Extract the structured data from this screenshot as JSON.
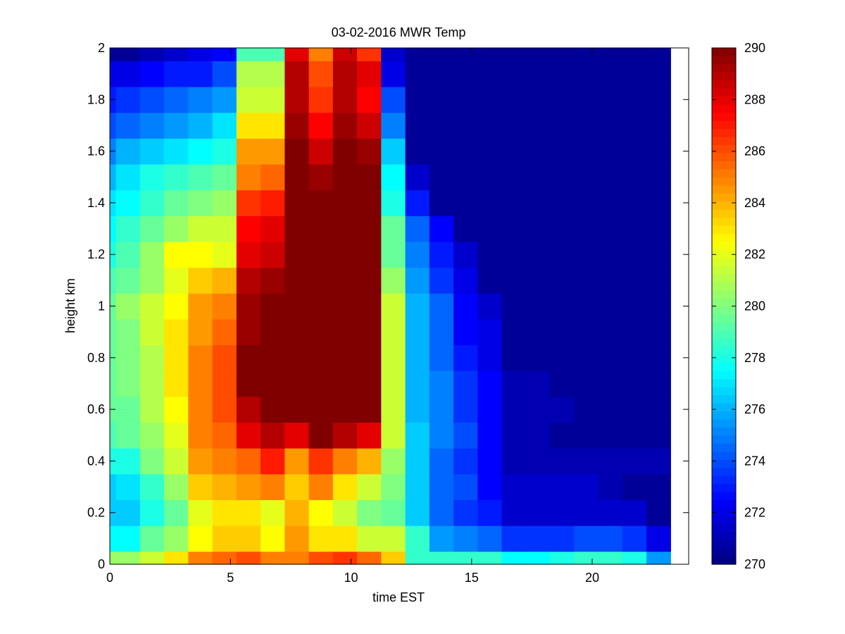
{
  "chart_data": {
    "type": "heatmap",
    "title": "03-02-2016 MWR Temp",
    "xlabel": "time EST",
    "ylabel": "height km",
    "xlim": [
      0,
      24
    ],
    "ylim": [
      0,
      2
    ],
    "xticks": [
      0,
      5,
      10,
      15,
      20
    ],
    "yticks": [
      0,
      0.2,
      0.4,
      0.6,
      0.8,
      1,
      1.2,
      1.4,
      1.6,
      1.8,
      2
    ],
    "colorbar": {
      "colormap": "jet",
      "min": 270,
      "max": 290,
      "ticks": [
        270,
        272,
        274,
        276,
        278,
        280,
        282,
        284,
        286,
        288,
        290
      ]
    },
    "x_centers": [
      0,
      1,
      2,
      3,
      4,
      5,
      6,
      7,
      8,
      9,
      10,
      11,
      12,
      13,
      14,
      15,
      16,
      17,
      18,
      19,
      20,
      21,
      22,
      23
    ],
    "x_edges": [
      0,
      0.25,
      1.25,
      2.25,
      3.25,
      4.25,
      5.25,
      6.25,
      7.25,
      8.25,
      9.25,
      10.25,
      11.25,
      12.25,
      13.25,
      14.25,
      15.25,
      16.25,
      17.25,
      18.25,
      19.25,
      20.25,
      21.25,
      22.25,
      23.25
    ],
    "y_edges": [
      0,
      0.05,
      0.15,
      0.25,
      0.35,
      0.45,
      0.55,
      0.65,
      0.75,
      0.85,
      0.95,
      1.05,
      1.15,
      1.25,
      1.35,
      1.45,
      1.55,
      1.65,
      1.75,
      1.85,
      1.95,
      2.0
    ],
    "values": [
      [
        280.5,
        280.5,
        281.5,
        283,
        285,
        285.5,
        286,
        285,
        285,
        286,
        286.5,
        285.5,
        283.5,
        278.5,
        278.5,
        278.5,
        278.5,
        277.5,
        277.5,
        278,
        278.5,
        278.5,
        278,
        275.5
      ],
      [
        277.5,
        277.5,
        279.5,
        280.5,
        282.5,
        283.5,
        283.5,
        282.5,
        284.5,
        283,
        283,
        281.5,
        281.5,
        278.5,
        275.5,
        275,
        274.5,
        273.5,
        273.5,
        273.5,
        274,
        274,
        273.5,
        272
      ],
      [
        276.5,
        276.5,
        278,
        279.5,
        282,
        283,
        283,
        282,
        284,
        282.5,
        281.5,
        280,
        279.5,
        276.5,
        274.5,
        273.5,
        273,
        271.5,
        271.5,
        271.5,
        271.5,
        271.5,
        271.5,
        270.5
      ],
      [
        276.5,
        277,
        278.5,
        280.5,
        283.5,
        284,
        284.5,
        285,
        283.5,
        285,
        283,
        281.5,
        280,
        276.5,
        274.5,
        274,
        272.5,
        271.5,
        271.5,
        271.5,
        271.5,
        271,
        270.5,
        270.5
      ],
      [
        278,
        278,
        280,
        281.5,
        284.5,
        285,
        285.5,
        287,
        284.5,
        286.5,
        285,
        284,
        280.5,
        276.5,
        274.5,
        273.5,
        272.5,
        271,
        271,
        271,
        271,
        271,
        271,
        271
      ],
      [
        279,
        279.5,
        280.5,
        282,
        285,
        285.5,
        288,
        289,
        288,
        290,
        289,
        288,
        281.5,
        276.5,
        275,
        274,
        272.5,
        271,
        271,
        270.5,
        270.5,
        270.5,
        270.5,
        270.5
      ],
      [
        279.5,
        279.5,
        281,
        282.5,
        285,
        286,
        289,
        290,
        290,
        290,
        290,
        290,
        281.5,
        276,
        275,
        273.5,
        272.5,
        271,
        271,
        271,
        270.5,
        270.5,
        270.5,
        270.5
      ],
      [
        279.5,
        280,
        281,
        283,
        285,
        286,
        290,
        290,
        290,
        290,
        290,
        290,
        281.5,
        276,
        275,
        273.5,
        272.5,
        271,
        271,
        270.5,
        270.5,
        270.5,
        270.5,
        270.5
      ],
      [
        279.5,
        280,
        281,
        283,
        285,
        286,
        290,
        290,
        290,
        290,
        290,
        290,
        281.5,
        276,
        274.5,
        273,
        272,
        270.5,
        270.5,
        270.5,
        270.5,
        270.5,
        270.5,
        270.5
      ],
      [
        279.5,
        280,
        281.5,
        283,
        284.5,
        285.5,
        289.5,
        290,
        290,
        290,
        290,
        290,
        281.5,
        276,
        274.5,
        272.5,
        272,
        270.5,
        270.5,
        270.5,
        270.5,
        270.5,
        270.5,
        270.5
      ],
      [
        279.5,
        280.5,
        281.5,
        282.5,
        284.5,
        285,
        289.5,
        290,
        290,
        290,
        290,
        290,
        281.5,
        276,
        274.5,
        272.5,
        271.5,
        270.5,
        270.5,
        270.5,
        270.5,
        270.5,
        270.5,
        270.5
      ],
      [
        279,
        279.5,
        280.5,
        282,
        283.5,
        284,
        289,
        289.5,
        290,
        290,
        290,
        290,
        280.5,
        275.5,
        273.5,
        272,
        270.5,
        270.5,
        270.5,
        270.5,
        270.5,
        270.5,
        270.5,
        270.5
      ],
      [
        278,
        279,
        280.5,
        282.5,
        282.5,
        282,
        288,
        288.5,
        290,
        290,
        290,
        290,
        279.5,
        275,
        273,
        271.5,
        270.5,
        270.5,
        270.5,
        270.5,
        270.5,
        270.5,
        270.5,
        270.5
      ],
      [
        277.5,
        278.5,
        279.5,
        280.5,
        281.5,
        281.5,
        287.5,
        288,
        290,
        290,
        290,
        290,
        279.5,
        274.5,
        272.5,
        270.5,
        270.5,
        270.5,
        270.5,
        270.5,
        270.5,
        270.5,
        270.5,
        270.5
      ],
      [
        277,
        277.5,
        278.5,
        279.5,
        280,
        280.5,
        286.5,
        287,
        290,
        290,
        290,
        290,
        278,
        273,
        270.5,
        270.5,
        270.5,
        270.5,
        270.5,
        270.5,
        270.5,
        270.5,
        270.5,
        270.5
      ],
      [
        276,
        277,
        278,
        278.5,
        279,
        279.5,
        285,
        285.5,
        290,
        289.5,
        290,
        290,
        277.5,
        271.5,
        270.5,
        270.5,
        270.5,
        270.5,
        270.5,
        270.5,
        270.5,
        270.5,
        270.5,
        270.5
      ],
      [
        275,
        276,
        276.5,
        277,
        277.5,
        278,
        284.5,
        284.5,
        290,
        288.5,
        290,
        289.5,
        276.5,
        270.5,
        270.5,
        270.5,
        270.5,
        270.5,
        270.5,
        270.5,
        270.5,
        270.5,
        270.5,
        270.5
      ],
      [
        274,
        274.5,
        275,
        275.5,
        276,
        277,
        283,
        283,
        289.5,
        287.5,
        289.5,
        288.5,
        275,
        270.5,
        270.5,
        270.5,
        270.5,
        270.5,
        270.5,
        270.5,
        270.5,
        270.5,
        270.5,
        270.5
      ],
      [
        273,
        273.5,
        274,
        274.5,
        275,
        275.5,
        281.5,
        281.5,
        289,
        286.5,
        289,
        287.5,
        274,
        270.5,
        270.5,
        270.5,
        270.5,
        270.5,
        270.5,
        270.5,
        270.5,
        270.5,
        270.5,
        270.5
      ],
      [
        272,
        272,
        272.5,
        273,
        273,
        274,
        281,
        281,
        289,
        286,
        289,
        288,
        272,
        270.5,
        270.5,
        270.5,
        270.5,
        270.5,
        270.5,
        270.5,
        270.5,
        270.5,
        270.5,
        270.5
      ],
      [
        270.5,
        270.5,
        271,
        271.5,
        272,
        272.5,
        279,
        279,
        288,
        285,
        288.5,
        286.5,
        271.5,
        270.5,
        270.5,
        270.5,
        270.5,
        270.5,
        270.5,
        270.5,
        270.5,
        270.5,
        270.5,
        270.5
      ]
    ]
  }
}
